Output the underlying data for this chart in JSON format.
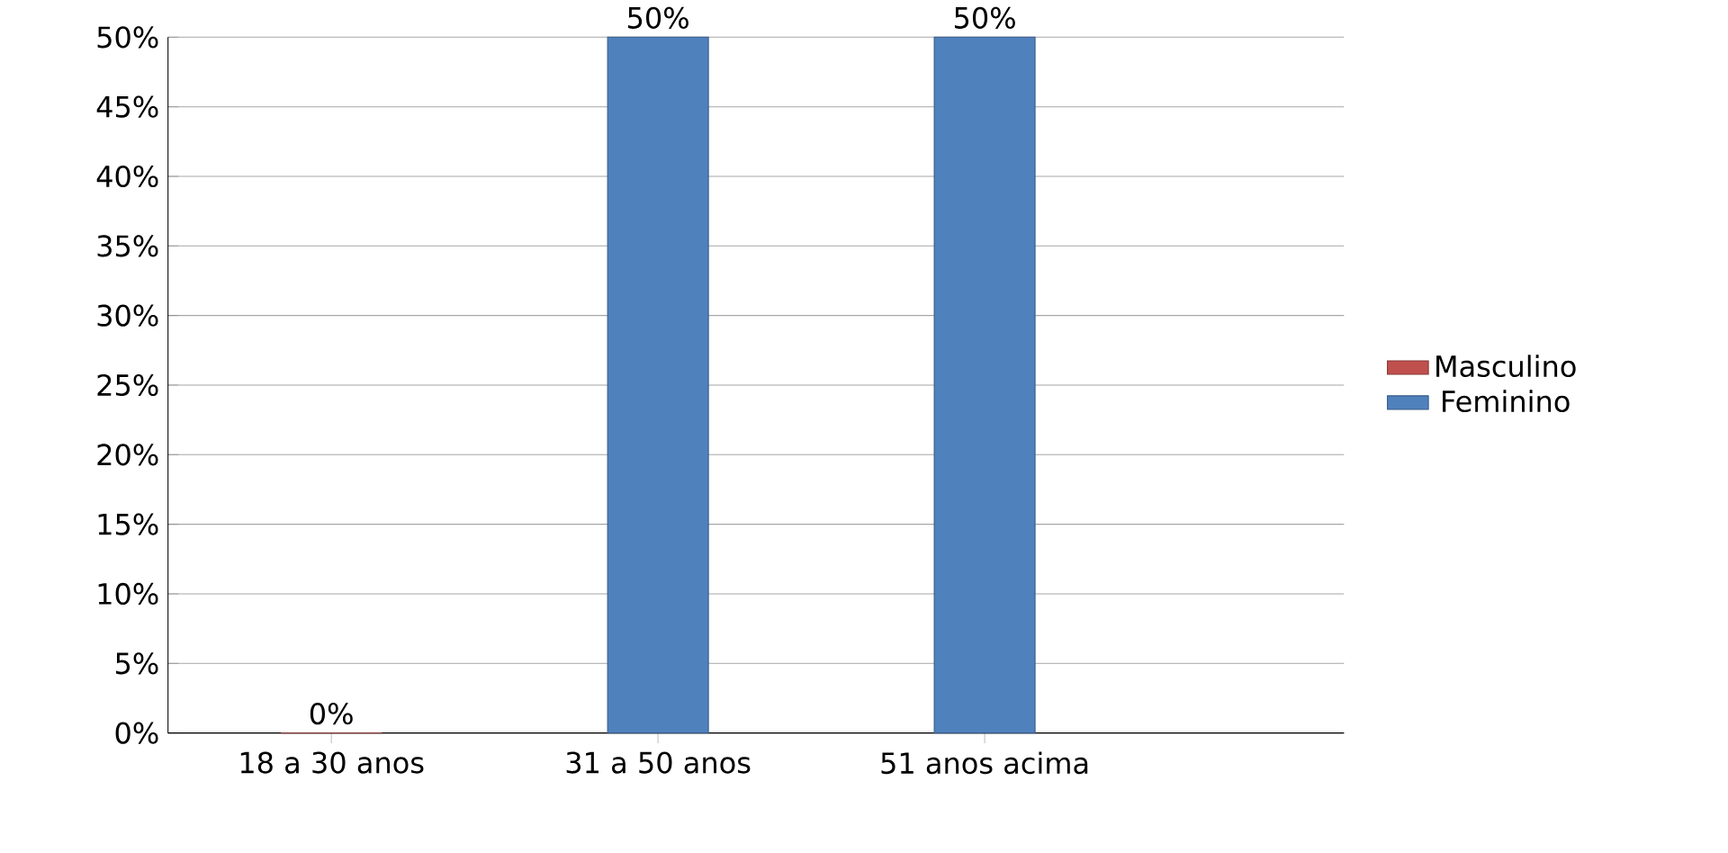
{
  "chart_data": {
    "type": "bar",
    "categories": [
      "18 a 30 anos",
      "31 a 50 anos",
      "51 anos acima"
    ],
    "series": [
      {
        "name": "Masculino",
        "color": "#c0504d",
        "values": [
          0,
          null,
          null
        ],
        "value_labels": [
          "0%",
          null,
          null
        ]
      },
      {
        "name": "Feminino",
        "color": "#4f81bd",
        "values": [
          null,
          50,
          50
        ],
        "value_labels": [
          null,
          "50%",
          "50%"
        ]
      }
    ],
    "ylim": [
      0,
      50
    ],
    "yticks": [
      {
        "value": 0,
        "label": "0%"
      },
      {
        "value": 5,
        "label": "5%"
      },
      {
        "value": 10,
        "label": "10%"
      },
      {
        "value": 15,
        "label": "15%"
      },
      {
        "value": 20,
        "label": "20%"
      },
      {
        "value": 25,
        "label": "25%"
      },
      {
        "value": 30,
        "label": "30%"
      },
      {
        "value": 35,
        "label": "35%"
      },
      {
        "value": 40,
        "label": "40%"
      },
      {
        "value": 45,
        "label": "45%"
      },
      {
        "value": 50,
        "label": "50%"
      }
    ],
    "grid": "y",
    "legend": "right"
  }
}
